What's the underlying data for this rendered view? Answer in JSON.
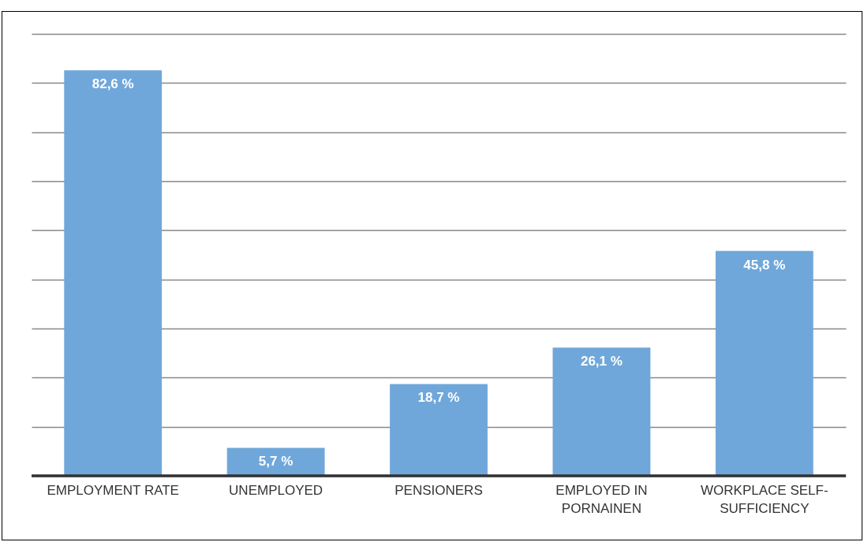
{
  "chart_data": {
    "type": "bar",
    "categories": [
      "EMPLOYMENT RATE",
      "UNEMPLOYED",
      "PENSIONERS",
      "EMPLOYED IN PORNAINEN",
      "WORKPLACE SELF-SUFFICIENCY"
    ],
    "values": [
      82.6,
      5.7,
      18.7,
      26.1,
      45.8
    ],
    "value_labels": [
      "82,6 %",
      "5,7 %",
      "18,7 %",
      "26,1 %",
      "45,8 %"
    ],
    "color": "#70a7da",
    "ylim": [
      0,
      90
    ],
    "yticks": [
      {
        "value": 0,
        "label": null
      },
      {
        "value": 10,
        "label": null
      },
      {
        "value": 20,
        "label": null
      },
      {
        "value": 30,
        "label": null
      },
      {
        "value": 40,
        "label": null
      },
      {
        "value": 50,
        "label": null
      },
      {
        "value": 60,
        "label": null
      },
      {
        "value": 70,
        "label": null
      },
      {
        "value": 80,
        "label": null
      },
      {
        "value": 90,
        "label": null
      }
    ],
    "grid": true,
    "tick_labels": "x"
  }
}
